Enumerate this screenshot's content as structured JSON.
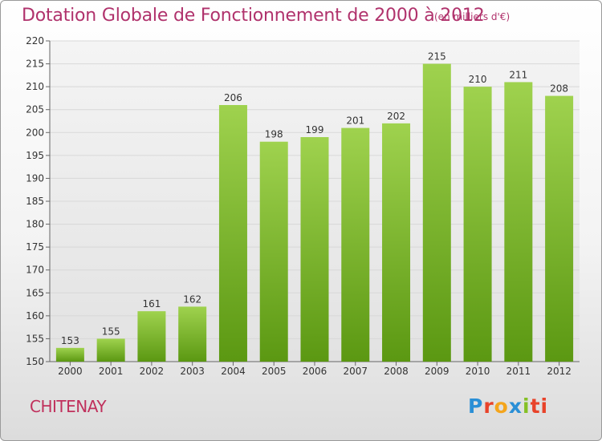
{
  "header": {
    "title": "Dotation Globale de Fonctionnement de 2000 à 2012",
    "subtitle": "(en milliers d'€)"
  },
  "footer": {
    "city": "CHITENAY",
    "logo": "Proxiti"
  },
  "colors": {
    "title": "#b0326c",
    "bar_light": "#9fd24e",
    "bar_dark": "#5b9812",
    "grid": "#d8d8d8"
  },
  "chart_data": {
    "type": "bar",
    "title": "Dotation Globale de Fonctionnement de 2000 à 2012",
    "subtitle": "(en milliers d'€)",
    "xlabel": "",
    "ylabel": "",
    "categories": [
      "2000",
      "2001",
      "2002",
      "2003",
      "2004",
      "2005",
      "2006",
      "2007",
      "2008",
      "2009",
      "2010",
      "2011",
      "2012"
    ],
    "values": [
      153,
      155,
      161,
      162,
      206,
      198,
      199,
      201,
      202,
      215,
      210,
      211,
      208
    ],
    "data_labels": [
      "153",
      "155",
      "161",
      "162",
      "206",
      "198",
      "199",
      "201",
      "202",
      "215",
      "210",
      "211",
      "208"
    ],
    "ylim": [
      150,
      220
    ],
    "yticks": [
      150,
      155,
      160,
      165,
      170,
      175,
      180,
      185,
      190,
      195,
      200,
      205,
      210,
      215,
      220
    ],
    "grid": true,
    "legend": "none"
  }
}
